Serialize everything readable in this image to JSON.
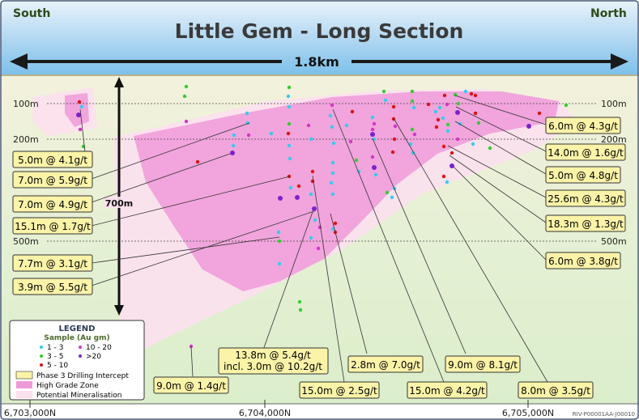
{
  "header": {
    "title": "Little Gem - Long Section",
    "south": "South",
    "north": "North",
    "span": "1.8km"
  },
  "depth": {
    "label": "700m",
    "levels": [
      "100m",
      "200m",
      "500m"
    ]
  },
  "intercepts_left": [
    "5.0m @ 4.1g/t",
    "7.0m @ 5.9g/t",
    "7.0m @ 4.9g/t",
    "15.1m @ 1.7g/t",
    "7.7m @ 3.1g/t",
    "3.9m @ 5.5g/t"
  ],
  "intercepts_right": [
    "6.0m @ 4.3g/t",
    "14.0m @ 1.6g/t",
    "5.0m @ 4.8g/t",
    "25.6m @ 4.3g/t",
    "18.3m @ 1.3g/t",
    "6.0m @ 3.8g/t"
  ],
  "intercepts_bottom": {
    "a": "9.0m @ 1.4g/t",
    "b1": "13.8m @ 5.4g/t",
    "b2": "incl. 3.0m @ 10.2g/t",
    "c": "15.0m @ 2.5g/t",
    "d": "2.8m @ 7.0g/t",
    "e": "15.0m @ 4.2g/t",
    "f": "9.0m @ 8.1g/t",
    "g": "8.0m @ 3.5g/t"
  },
  "legend": {
    "title": "LEGEND",
    "subtitle": "Sample (Au gm)",
    "items": [
      {
        "label": "1 - 3",
        "color": "#33ccee"
      },
      {
        "label": "10 - 20",
        "color": "#d633c8"
      },
      {
        "label": "3 - 5",
        "color": "#33cc33"
      },
      {
        "label": ">20",
        "color": "#7a22cc"
      },
      {
        "label": "5 - 10",
        "color": "#dd1111"
      }
    ],
    "swatches": [
      {
        "label": "Phase 3 Drilling Intercept",
        "color": "#fbf3a8"
      },
      {
        "label": "High Grade Zone",
        "color": "#ee9ad8"
      },
      {
        "label": "Potential Mineralisation",
        "color": "#fbe0ee"
      }
    ]
  },
  "axis": {
    "ticks": [
      "6,703,000N",
      "6,704,000N",
      "6,705,000N"
    ],
    "ref": "RIV-P00001AA-J00010"
  },
  "colors": {
    "title": "#3a3a3a",
    "north_south": "#2e4a18",
    "callout_fill": "#fbf3a8",
    "high_grade": "#ee9ad8"
  }
}
